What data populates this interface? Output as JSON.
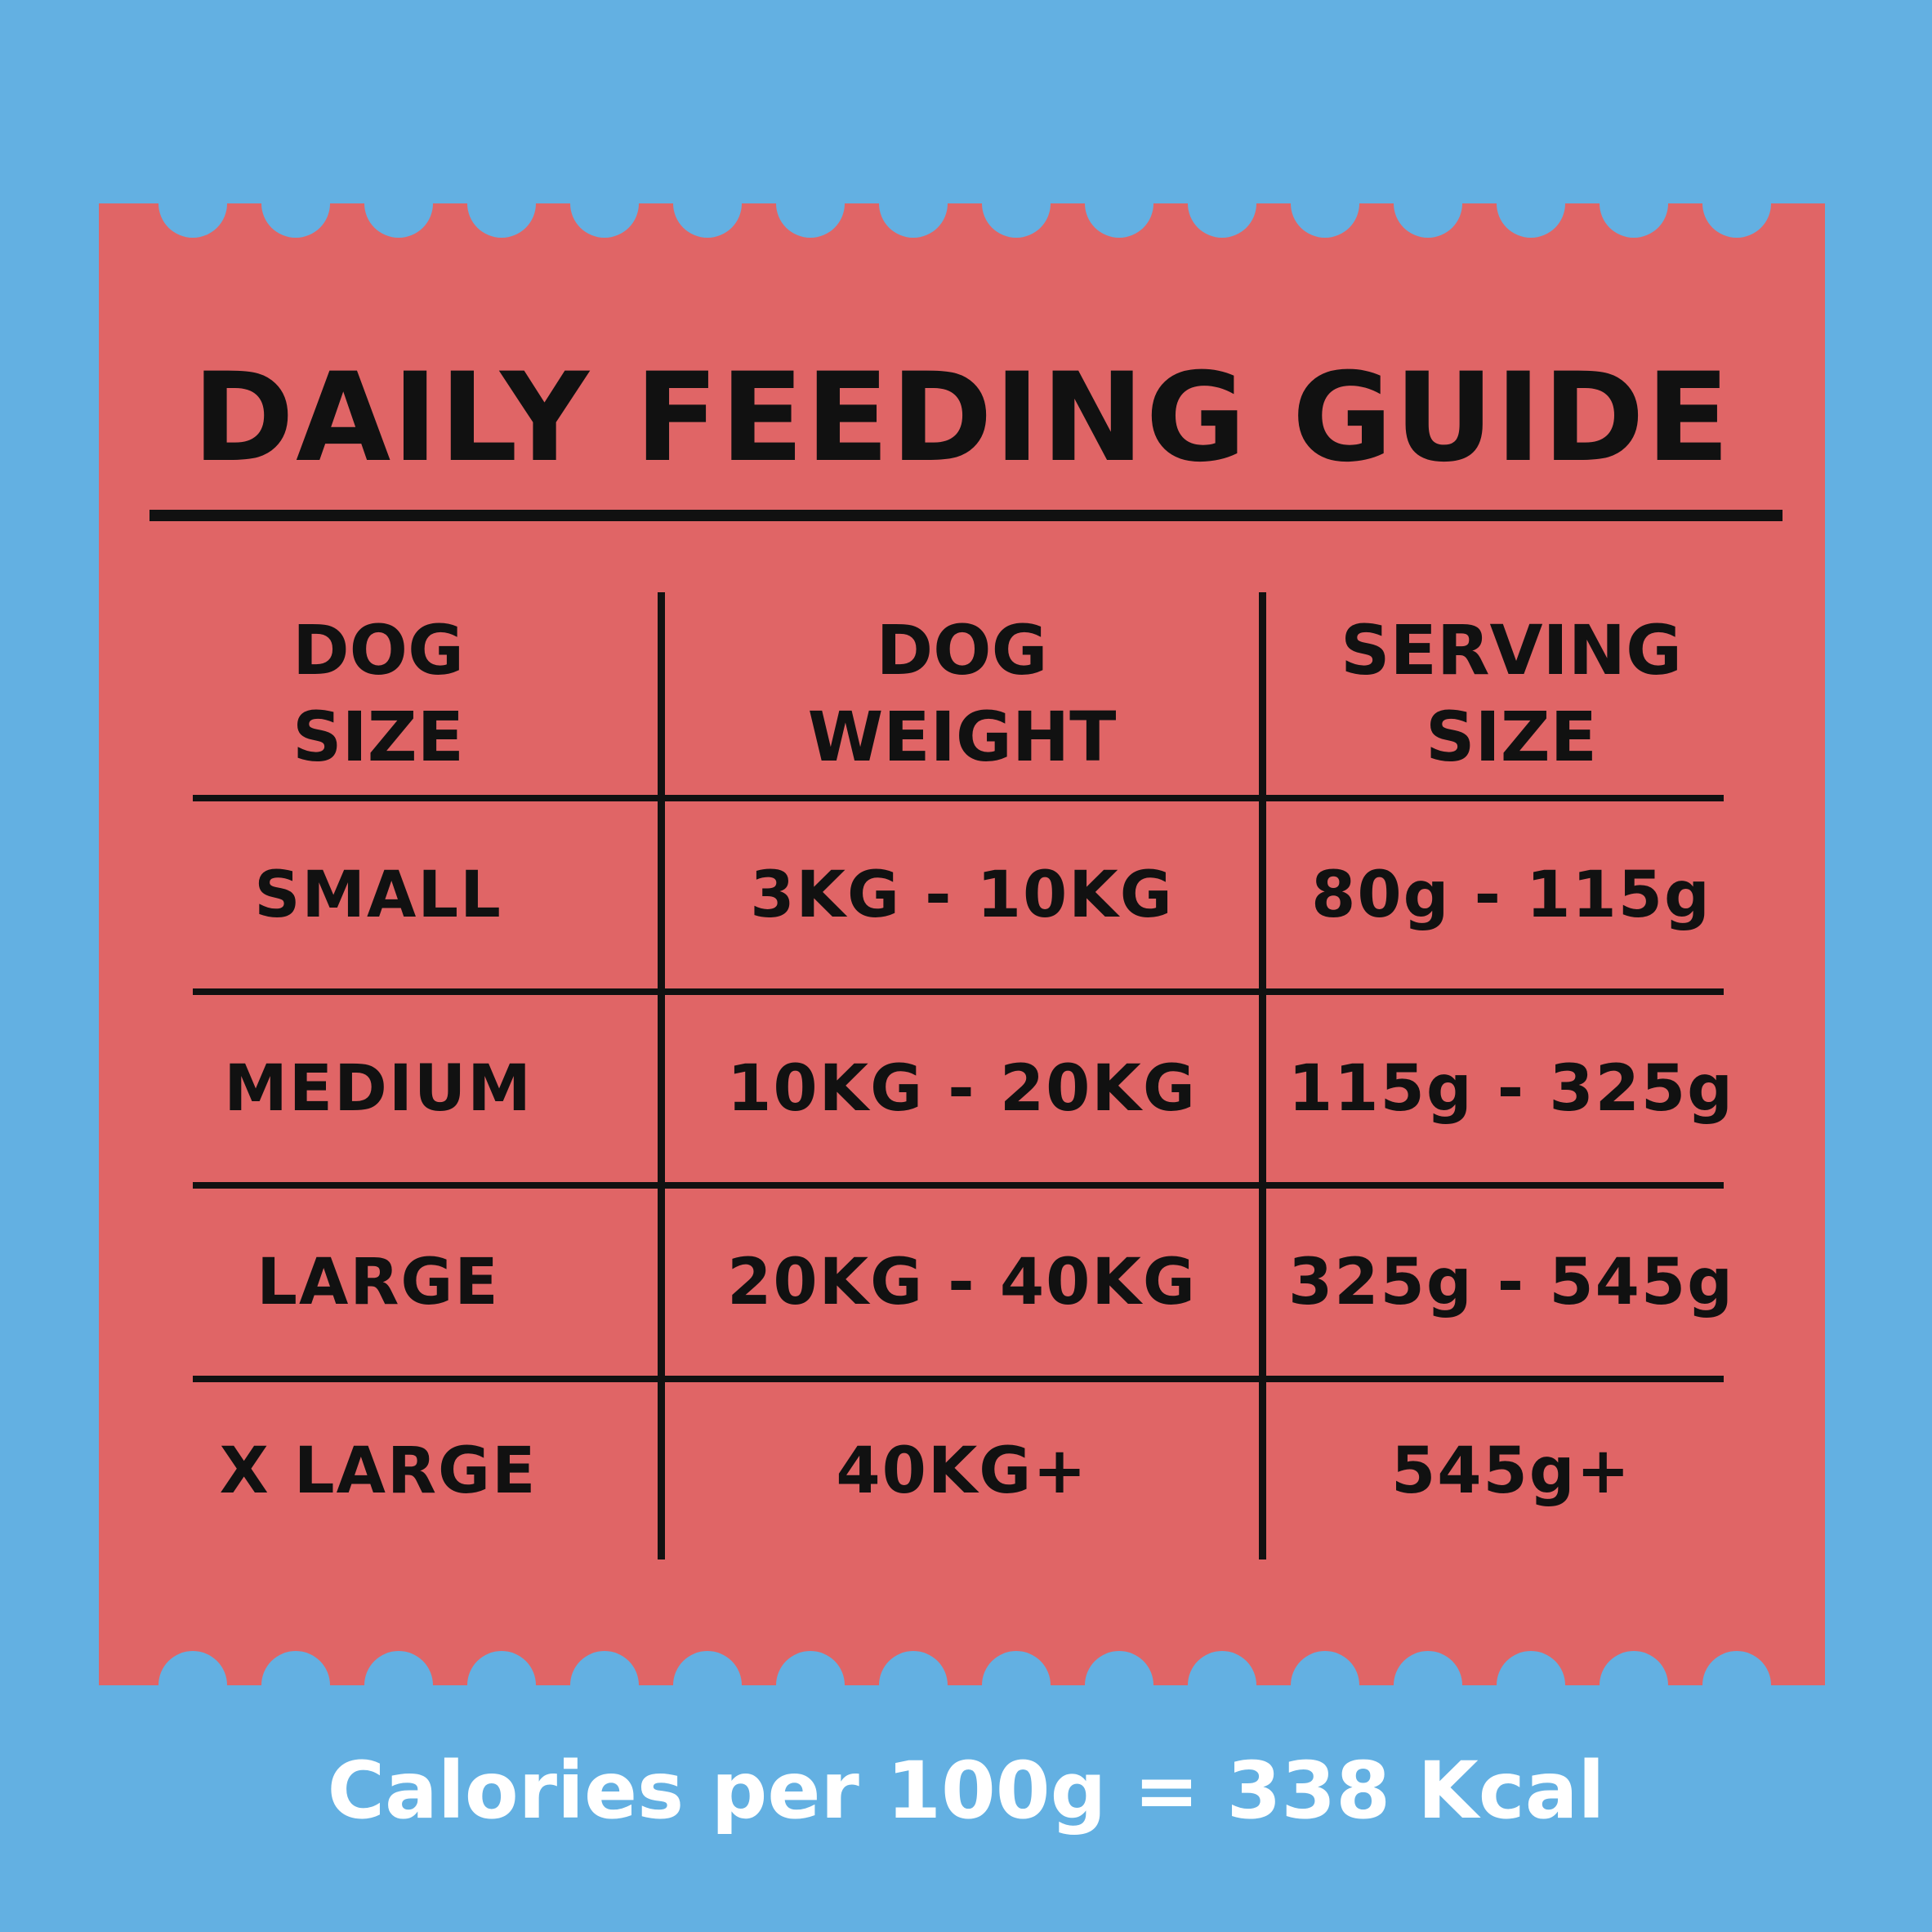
{
  "colors": {
    "background": "#63b0e2",
    "card": "#e06566",
    "ink": "#111111",
    "footer_text": "#ffffff"
  },
  "title": "DAILY FEEDING GUIDE",
  "table": {
    "headers": [
      "DOG\nSIZE",
      "DOG\nWEIGHT",
      "SERVING\nSIZE"
    ],
    "rows": [
      [
        "SMALL",
        "3KG - 10KG",
        "80g - 115g"
      ],
      [
        "MEDIUM",
        "10KG - 20KG",
        "115g - 325g"
      ],
      [
        "LARGE",
        "20KG - 40KG",
        "325g - 545g"
      ],
      [
        "X LARGE",
        "40KG+",
        "545g+"
      ]
    ]
  },
  "footer": "Calories per 100g = 338 Kcal"
}
